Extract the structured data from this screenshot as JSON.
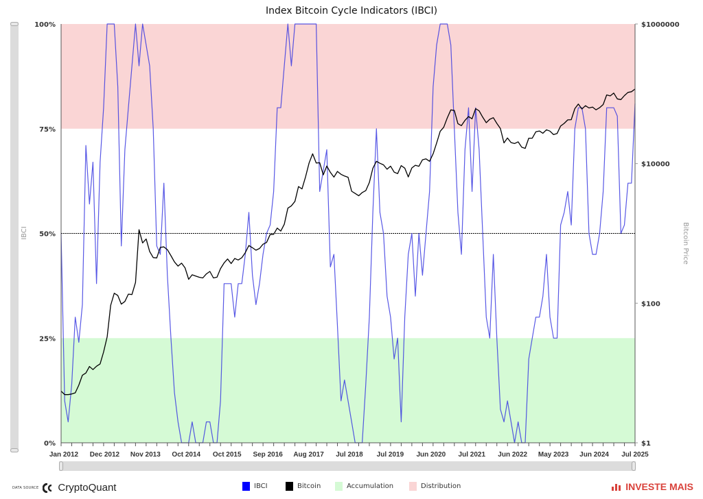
{
  "chart_data": {
    "type": "line",
    "title": "Index Bitcoin Cycle Indicators (IBCI)",
    "y_left_label": "IBCI",
    "y_right_label": "Bitcoin Price",
    "y_left_ticks": [
      "0%",
      "25%",
      "50%",
      "75%",
      "100%"
    ],
    "y_left_range": [
      0,
      100
    ],
    "y_right_ticks": [
      "$1",
      "$100",
      "$10000",
      "$1000000"
    ],
    "y_right_range": [
      1,
      1000000
    ],
    "y_right_scale": "log",
    "x_ticks": [
      "Jan 2012",
      "Dec 2012",
      "Nov 2013",
      "Oct 2014",
      "Oct 2015",
      "Sep 2016",
      "Aug 2017",
      "Jul 2018",
      "Jul 2019",
      "Jun 2020",
      "Jul 2021",
      "Jun 2022",
      "May 2023",
      "Jun 2024",
      "Jul 2025"
    ],
    "x_range": [
      "2012-01",
      "2025-07"
    ],
    "reference_line": {
      "value": 50,
      "style": "dotted"
    },
    "zones": [
      {
        "name": "Accumulation",
        "from": 0,
        "to": 25,
        "color": "#d5fad5"
      },
      {
        "name": "Distribution",
        "from": 75,
        "to": 100,
        "color": "#fad5d5"
      }
    ],
    "dates": [
      "2012-01",
      "2012-02",
      "2012-03",
      "2012-04",
      "2012-05",
      "2012-06",
      "2012-07",
      "2012-08",
      "2012-09",
      "2012-10",
      "2012-11",
      "2012-12",
      "2013-01",
      "2013-02",
      "2013-03",
      "2013-04",
      "2013-05",
      "2013-06",
      "2013-07",
      "2013-08",
      "2013-09",
      "2013-10",
      "2013-11",
      "2013-12",
      "2014-01",
      "2014-02",
      "2014-03",
      "2014-04",
      "2014-05",
      "2014-06",
      "2014-07",
      "2014-08",
      "2014-09",
      "2014-10",
      "2014-11",
      "2014-12",
      "2015-01",
      "2015-02",
      "2015-03",
      "2015-04",
      "2015-05",
      "2015-06",
      "2015-07",
      "2015-08",
      "2015-09",
      "2015-10",
      "2015-11",
      "2015-12",
      "2016-01",
      "2016-02",
      "2016-03",
      "2016-04",
      "2016-05",
      "2016-06",
      "2016-07",
      "2016-08",
      "2016-09",
      "2016-10",
      "2016-11",
      "2016-12",
      "2017-01",
      "2017-02",
      "2017-03",
      "2017-04",
      "2017-05",
      "2017-06",
      "2017-07",
      "2017-08",
      "2017-09",
      "2017-10",
      "2017-11",
      "2017-12",
      "2018-01",
      "2018-02",
      "2018-03",
      "2018-04",
      "2018-05",
      "2018-06",
      "2018-07",
      "2018-08",
      "2018-09",
      "2018-10",
      "2018-11",
      "2018-12",
      "2019-01",
      "2019-02",
      "2019-03",
      "2019-04",
      "2019-05",
      "2019-06",
      "2019-07",
      "2019-08",
      "2019-09",
      "2019-10",
      "2019-11",
      "2019-12",
      "2020-01",
      "2020-02",
      "2020-03",
      "2020-04",
      "2020-05",
      "2020-06",
      "2020-07",
      "2020-08",
      "2020-09",
      "2020-10",
      "2020-11",
      "2020-12",
      "2021-01",
      "2021-02",
      "2021-03",
      "2021-04",
      "2021-05",
      "2021-06",
      "2021-07",
      "2021-08",
      "2021-09",
      "2021-10",
      "2021-11",
      "2021-12",
      "2022-01",
      "2022-02",
      "2022-03",
      "2022-04",
      "2022-05",
      "2022-06",
      "2022-07",
      "2022-08",
      "2022-09",
      "2022-10",
      "2022-11",
      "2022-12",
      "2023-01",
      "2023-02",
      "2023-03",
      "2023-04",
      "2023-05",
      "2023-06",
      "2023-07",
      "2023-08",
      "2023-09",
      "2023-10",
      "2023-11",
      "2023-12",
      "2024-01",
      "2024-02",
      "2024-03",
      "2024-04",
      "2024-05",
      "2024-06",
      "2024-07",
      "2024-08",
      "2024-09",
      "2024-10",
      "2024-11",
      "2024-12",
      "2025-01",
      "2025-02",
      "2025-03",
      "2025-04",
      "2025-05",
      "2025-06",
      "2025-07"
    ],
    "series": [
      {
        "name": "IBCI",
        "axis": "left",
        "color": "#3a3ae0",
        "values": [
          50,
          10,
          5,
          14,
          30,
          24,
          33,
          71,
          57,
          67,
          38,
          67,
          80,
          100,
          100,
          100,
          85,
          47,
          70,
          80,
          90,
          100,
          90,
          100,
          95,
          90,
          75,
          47,
          45,
          62,
          40,
          25,
          12,
          5,
          0,
          0,
          0,
          5,
          0,
          0,
          0,
          5,
          5,
          0,
          0,
          10,
          38,
          38,
          38,
          30,
          38,
          38,
          45,
          55,
          40,
          33,
          38,
          45,
          50,
          52,
          60,
          80,
          80,
          90,
          100,
          90,
          100,
          100,
          100,
          100,
          100,
          100,
          100,
          60,
          65,
          70,
          42,
          45,
          28,
          10,
          15,
          10,
          5,
          0,
          0,
          0,
          14,
          30,
          55,
          75,
          55,
          50,
          35,
          30,
          20,
          25,
          5,
          30,
          45,
          50,
          35,
          50,
          40,
          50,
          60,
          85,
          95,
          100,
          100,
          100,
          95,
          75,
          55,
          45,
          70,
          80,
          60,
          80,
          70,
          50,
          30,
          25,
          45,
          25,
          8,
          5,
          10,
          5,
          0,
          5,
          0,
          0,
          20,
          25,
          30,
          30,
          35,
          45,
          30,
          25,
          25,
          52,
          55,
          60,
          52,
          75,
          80,
          80,
          75,
          50,
          45,
          45,
          50,
          60,
          80,
          80,
          80,
          78,
          50,
          52,
          62,
          62,
          81
        ]
      },
      {
        "name": "Bitcoin",
        "axis": "right",
        "color": "#000000",
        "values": [
          5.5,
          4.9,
          4.9,
          5,
          5.2,
          6.7,
          9.3,
          10,
          12.4,
          11.2,
          12.5,
          13.5,
          20,
          33,
          93,
          139,
          129,
          97,
          106,
          135,
          133,
          198,
          1130,
          730,
          830,
          550,
          450,
          445,
          630,
          640,
          585,
          480,
          390,
          340,
          375,
          320,
          220,
          255,
          245,
          235,
          230,
          263,
          285,
          230,
          236,
          313,
          377,
          430,
          370,
          437,
          416,
          448,
          530,
          670,
          624,
          575,
          608,
          700,
          742,
          963,
          970,
          1190,
          1080,
          1350,
          2300,
          2480,
          2875,
          4700,
          4340,
          6470,
          10200,
          13800,
          10200,
          10300,
          6900,
          9240,
          7500,
          6400,
          7730,
          7030,
          6630,
          6370,
          4020,
          3740,
          3460,
          3850,
          4100,
          5350,
          8570,
          10800,
          10100,
          9600,
          8300,
          9200,
          7550,
          7190,
          9350,
          8600,
          6440,
          8660,
          9460,
          9140,
          11350,
          11680,
          10780,
          13800,
          19700,
          29000,
          33100,
          45100,
          58800,
          57700,
          37300,
          35000,
          41600,
          47100,
          43800,
          61300,
          57000,
          46300,
          38500,
          43200,
          45500,
          37700,
          31800,
          19800,
          23300,
          20000,
          19400,
          20500,
          17200,
          16500,
          23100,
          23100,
          28500,
          29300,
          27200,
          30500,
          29200,
          26000,
          27000,
          34500,
          37700,
          42300,
          42600,
          61200,
          71300,
          60600,
          67500,
          62700,
          64600,
          59000,
          63300,
          70200,
          96400,
          93400,
          102400,
          84400,
          82500,
          94200,
          104600,
          107100,
          117000
        ]
      }
    ],
    "legend": {
      "placement": "bottom",
      "entries": [
        {
          "label": "IBCI",
          "color": "#0000ff"
        },
        {
          "label": "Bitcoin",
          "color": "#000000"
        },
        {
          "label": "Accumulation",
          "color": "#d5fad5"
        },
        {
          "label": "Distribution",
          "color": "#fad5d5"
        }
      ]
    }
  },
  "footer": {
    "data_source_label": "DATA SOURCE",
    "data_source_logo": "CryptoQuant",
    "brand_logo": "INVESTE MAIS",
    "brand_color": "#d9413a"
  }
}
